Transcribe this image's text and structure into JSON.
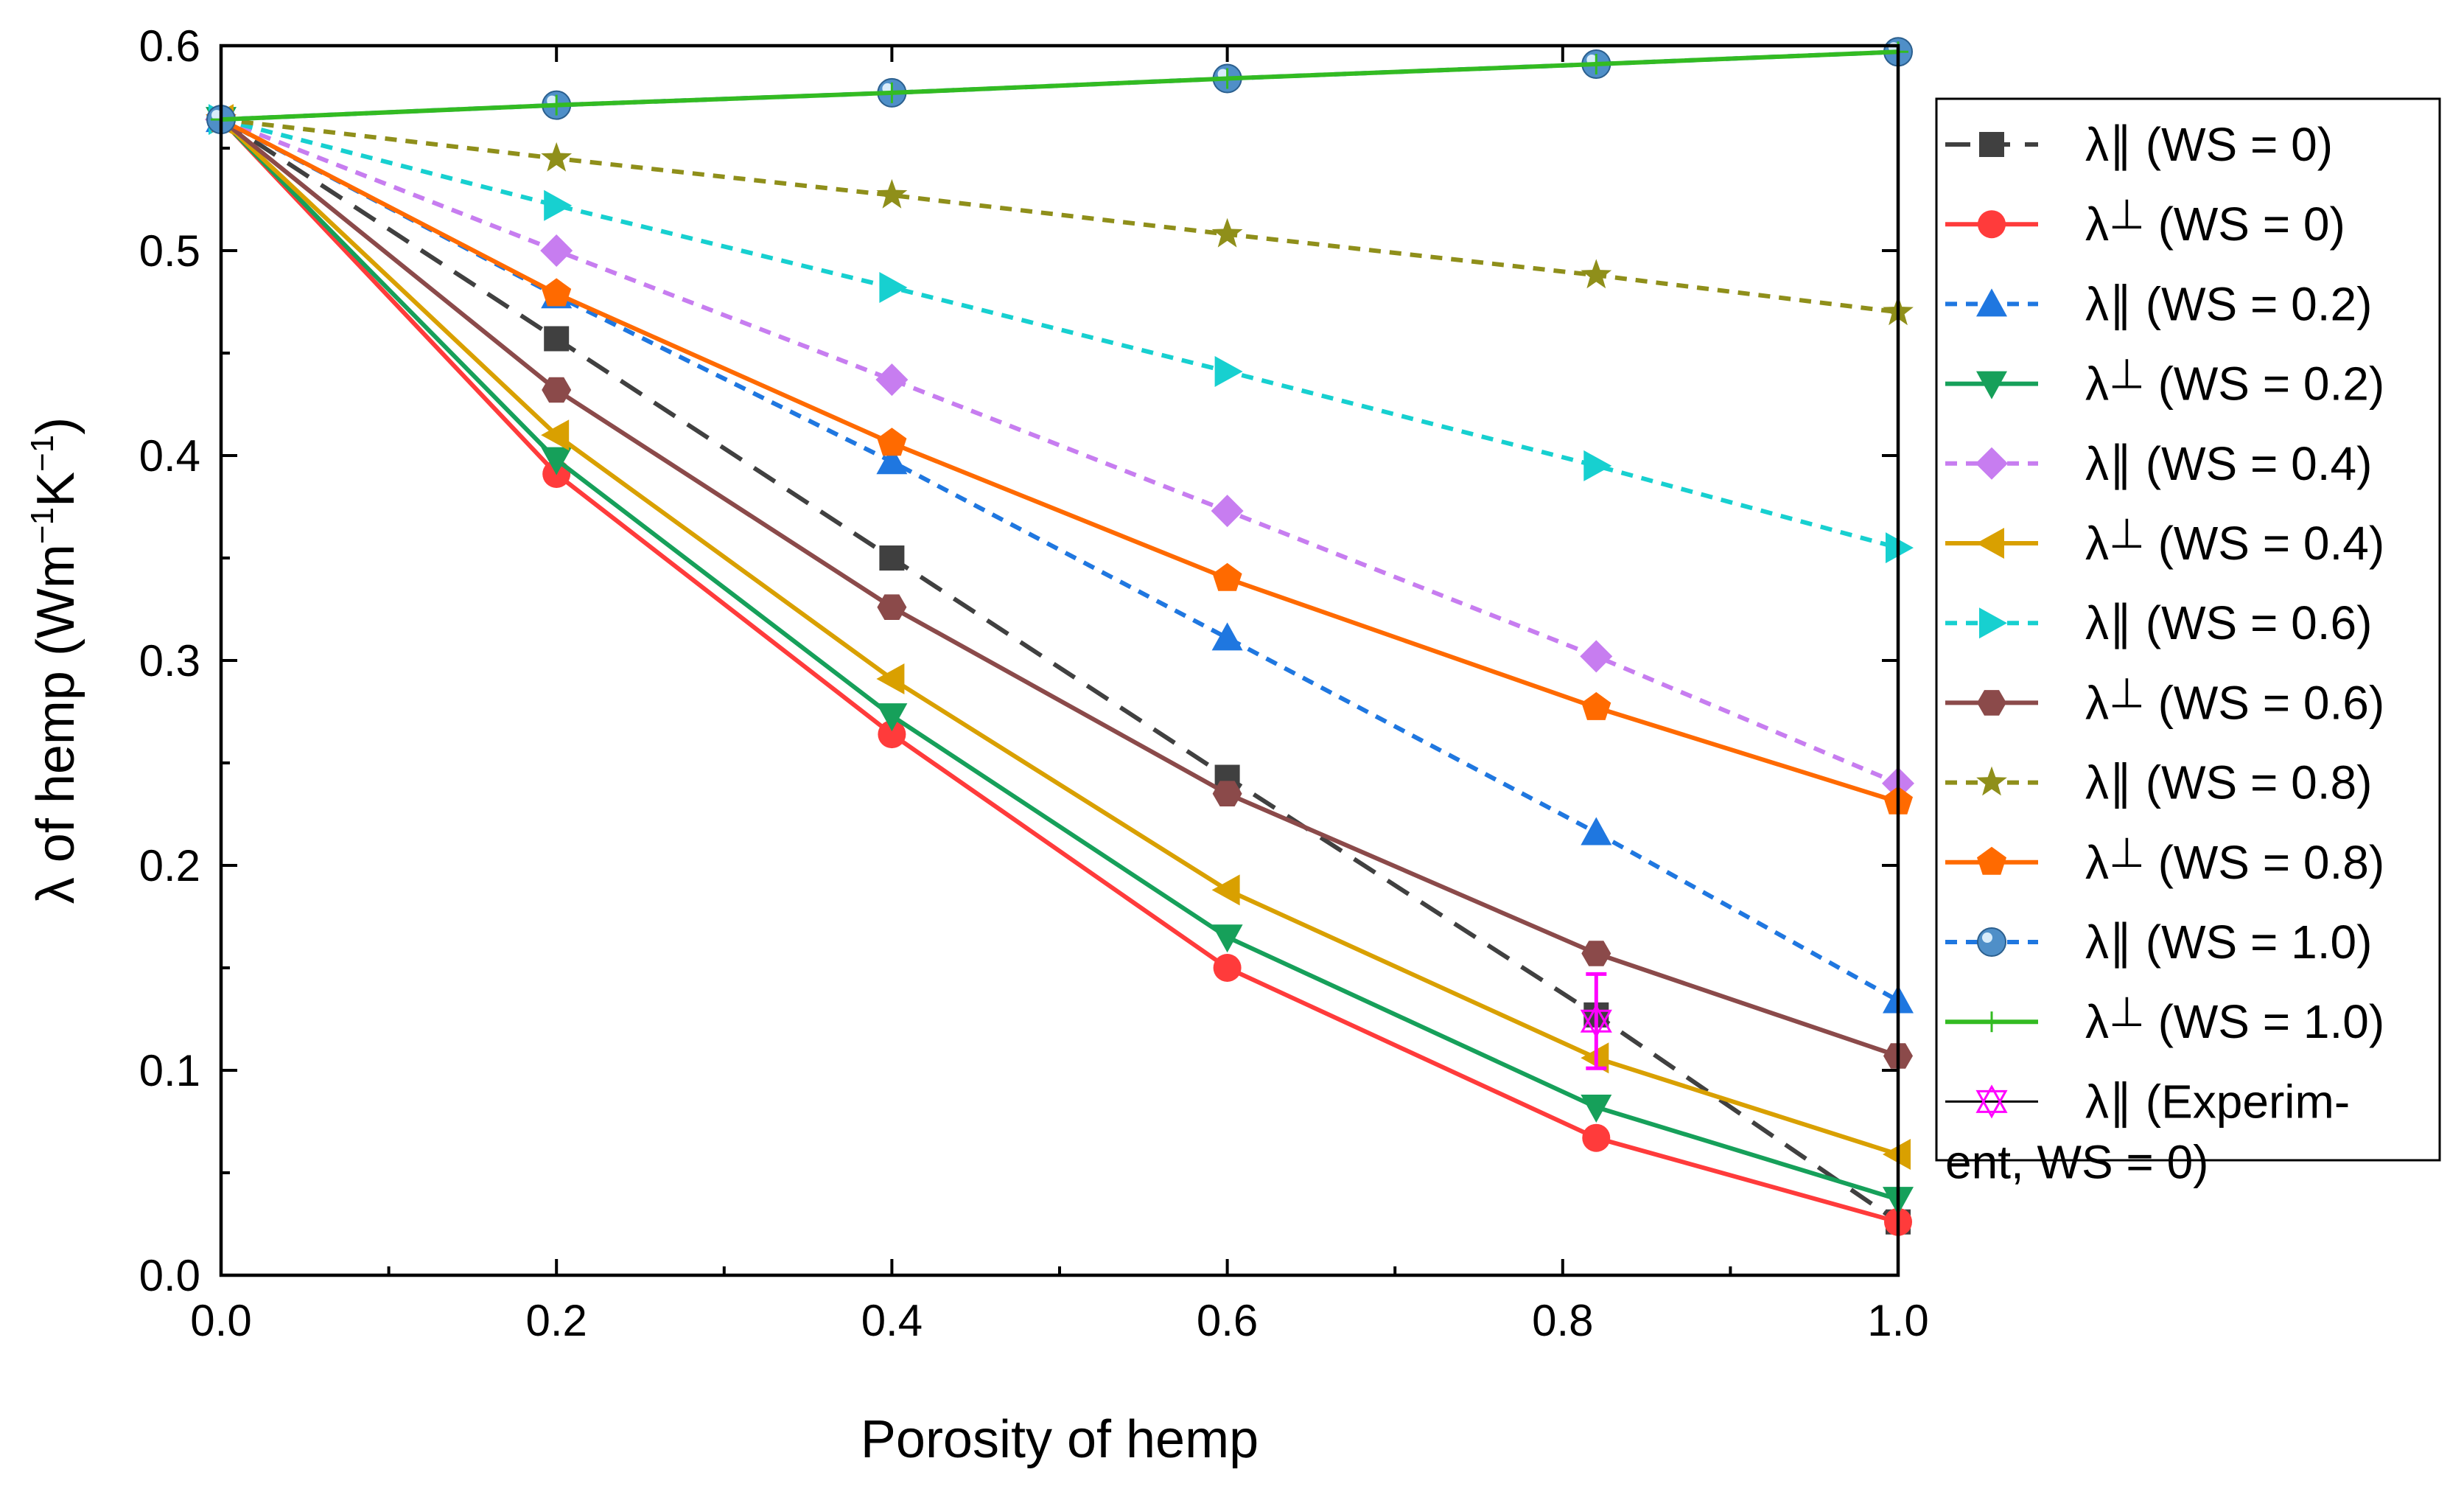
{
  "chart_data": {
    "type": "line",
    "title": "",
    "xlabel": "Porosity of hemp",
    "ylabel": {
      "pre": "λ of hemp (Wm",
      "sup1": "−1",
      "mid": "K",
      "sup2": "−1",
      "post": ")"
    },
    "xlim": [
      0.0,
      1.0
    ],
    "ylim": [
      0.0,
      0.6
    ],
    "x_ticks": [
      "0.0",
      "0.2",
      "0.4",
      "0.6",
      "0.8",
      "1.0"
    ],
    "y_ticks": [
      "0.0",
      "0.1",
      "0.2",
      "0.3",
      "0.4",
      "0.5",
      "0.6"
    ],
    "x_tick_values": [
      0.0,
      0.2,
      0.4,
      0.6,
      0.8,
      1.0
    ],
    "y_tick_values": [
      0.0,
      0.1,
      0.2,
      0.3,
      0.4,
      0.5,
      0.6
    ],
    "x": [
      0.0,
      0.2,
      0.4,
      0.6,
      0.82,
      1.0
    ],
    "legend_position": "right",
    "series": [
      {
        "name": "λ∥ (WS = 0)",
        "sym": "∥",
        "ws": "(WS = 0)",
        "color": "#404040",
        "dash": "long",
        "marker": "square",
        "values": [
          0.564,
          0.457,
          0.35,
          0.243,
          0.127,
          0.026
        ]
      },
      {
        "name": "λ⊥ (WS = 0)",
        "sym": "⊥",
        "ws": "(WS = 0)",
        "color": "#ff3b3b",
        "dash": "solid",
        "marker": "circle",
        "values": [
          0.564,
          0.391,
          0.264,
          0.15,
          0.067,
          0.026
        ]
      },
      {
        "name": "λ∥ (WS = 0.2)",
        "sym": "∥",
        "ws": "(WS = 0.2)",
        "color": "#1f77e0",
        "dash": "short",
        "marker": "triangle-up",
        "values": [
          0.564,
          0.478,
          0.397,
          0.311,
          0.216,
          0.134
        ]
      },
      {
        "name": "λ⊥ (WS = 0.2)",
        "sym": "⊥",
        "ws": "(WS = 0.2)",
        "color": "#16a05a",
        "dash": "solid",
        "marker": "triangle-down",
        "values": [
          0.564,
          0.398,
          0.273,
          0.165,
          0.082,
          0.037
        ]
      },
      {
        "name": "λ∥ (WS = 0.4)",
        "sym": "∥",
        "ws": "(WS = 0.4)",
        "color": "#c77df0",
        "dash": "short",
        "marker": "diamond",
        "values": [
          0.564,
          0.5,
          0.437,
          0.373,
          0.302,
          0.24
        ]
      },
      {
        "name": "λ⊥ (WS = 0.4)",
        "sym": "⊥",
        "ws": "(WS = 0.4)",
        "color": "#d9a000",
        "dash": "solid",
        "marker": "triangle-left",
        "values": [
          0.564,
          0.41,
          0.291,
          0.188,
          0.106,
          0.059
        ]
      },
      {
        "name": "λ∥ (WS = 0.6)",
        "sym": "∥",
        "ws": "(WS = 0.6)",
        "color": "#17d0d0",
        "dash": "short",
        "marker": "triangle-right",
        "values": [
          0.564,
          0.522,
          0.482,
          0.441,
          0.395,
          0.355
        ]
      },
      {
        "name": "λ⊥ (WS = 0.6)",
        "sym": "⊥",
        "ws": "(WS = 0.6)",
        "color": "#8b4a4a",
        "dash": "solid",
        "marker": "hexagon",
        "values": [
          0.564,
          0.432,
          0.326,
          0.235,
          0.157,
          0.107
        ]
      },
      {
        "name": "λ∥ (WS = 0.8)",
        "sym": "∥",
        "ws": "(WS = 0.8)",
        "color": "#8f8f1a",
        "dash": "short",
        "marker": "star",
        "values": [
          0.564,
          0.545,
          0.527,
          0.508,
          0.488,
          0.47
        ]
      },
      {
        "name": "λ⊥ (WS = 0.8)",
        "sym": "⊥",
        "ws": "(WS = 0.8)",
        "color": "#ff6a00",
        "dash": "solid",
        "marker": "pentagon",
        "values": [
          0.564,
          0.479,
          0.406,
          0.34,
          0.277,
          0.231
        ]
      },
      {
        "name": "λ∥ (WS = 1.0)",
        "sym": "∥",
        "ws": "(WS = 1.0)",
        "color": "#1f77e0",
        "dash": "short",
        "marker": "sphere",
        "values": [
          0.564,
          0.571,
          0.577,
          0.584,
          0.591,
          0.597
        ]
      },
      {
        "name": "λ⊥ (WS = 1.0)",
        "sym": "⊥",
        "ws": "(WS = 1.0)",
        "color": "#33bb22",
        "dash": "solid",
        "marker": "plus",
        "values": [
          0.564,
          0.571,
          0.577,
          0.584,
          0.591,
          0.597
        ]
      }
    ],
    "experiment": {
      "name": "λ∥ (Experiment, WS = 0)",
      "sym": "∥",
      "legend_line1": "(Experim-",
      "legend_line2": "ent, WS = 0)",
      "color": "#ff00ff",
      "x": 0.82,
      "value": 0.124,
      "error_low": 0.101,
      "error_high": 0.147
    }
  }
}
